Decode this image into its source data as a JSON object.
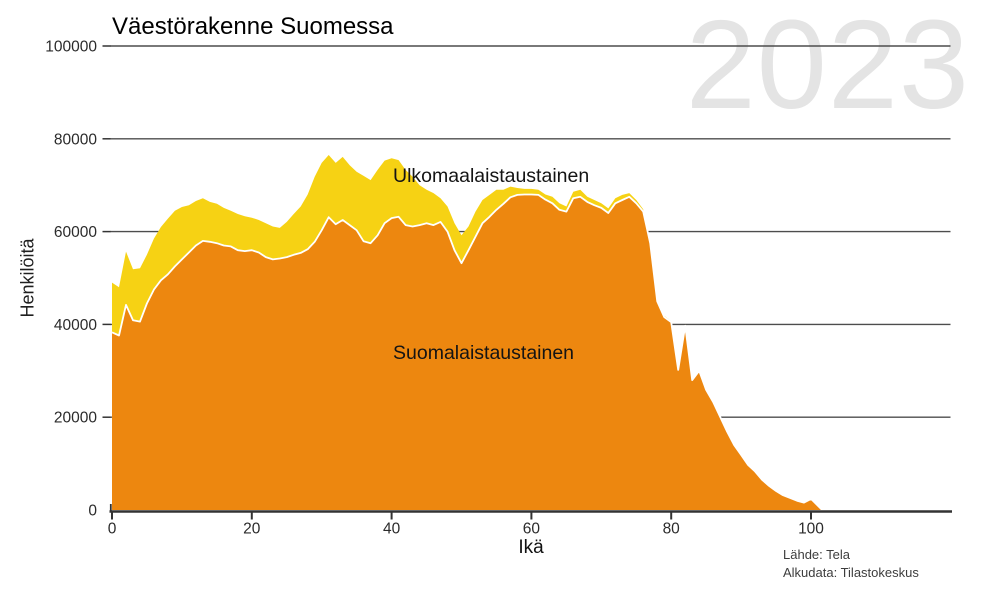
{
  "header": {
    "title": "Väestörakenne Suomessa",
    "watermark": "2023"
  },
  "footer": {
    "source_line1": "Lähde: Tela",
    "source_line2": "Alkudata: Tilastokeskus"
  },
  "chart_data": {
    "type": "area",
    "stacked": true,
    "title": "Väestörakenne Suomessa",
    "xlabel": "Ikä",
    "ylabel": "Henkilöitä",
    "xlim": [
      0,
      120
    ],
    "ylim": [
      0,
      100000
    ],
    "x_ticks": [
      0,
      20,
      40,
      60,
      80,
      100
    ],
    "y_ticks": [
      0,
      20000,
      40000,
      60000,
      80000,
      100000
    ],
    "grid": "horizontal",
    "background_color": "#ffffff",
    "grid_color": "#4d4d4d",
    "axis_color": "#333333",
    "boundary_line_color": "#ffffff",
    "watermark_color": "#e4e4e4",
    "ages": [
      0,
      1,
      2,
      3,
      4,
      5,
      6,
      7,
      8,
      9,
      10,
      11,
      12,
      13,
      14,
      15,
      16,
      17,
      18,
      19,
      20,
      21,
      22,
      23,
      24,
      25,
      26,
      27,
      28,
      29,
      30,
      31,
      32,
      33,
      34,
      35,
      36,
      37,
      38,
      39,
      40,
      41,
      42,
      43,
      44,
      45,
      46,
      47,
      48,
      49,
      50,
      51,
      52,
      53,
      54,
      55,
      56,
      57,
      58,
      59,
      60,
      61,
      62,
      63,
      64,
      65,
      66,
      67,
      68,
      69,
      70,
      71,
      72,
      73,
      74,
      75,
      76,
      77,
      78,
      79,
      80,
      81,
      82,
      83,
      84,
      85,
      86,
      87,
      88,
      89,
      90,
      91,
      92,
      93,
      94,
      95,
      96,
      97,
      98,
      99,
      100
    ],
    "series": [
      {
        "name": "Suomalaistaustainen",
        "color": "#ED870F",
        "values": [
          38300,
          37600,
          44200,
          40900,
          40600,
          44500,
          47500,
          49500,
          50800,
          52500,
          54000,
          55500,
          57000,
          58000,
          57800,
          57500,
          57000,
          56800,
          56000,
          55800,
          56000,
          55500,
          54500,
          54000,
          54200,
          54500,
          55000,
          55400,
          56200,
          57800,
          60300,
          63100,
          61600,
          62500,
          61400,
          60300,
          57900,
          57500,
          59200,
          61800,
          62900,
          63200,
          61400,
          61100,
          61400,
          61800,
          61400,
          62100,
          60000,
          56000,
          53200,
          56000,
          58900,
          61800,
          63200,
          64700,
          66000,
          67400,
          67900,
          68000,
          68000,
          67900,
          66900,
          66100,
          64700,
          64300,
          67200,
          67500,
          66400,
          65700,
          65100,
          64000,
          66100,
          66800,
          67500,
          66100,
          64300,
          57500,
          45000,
          41600,
          40500,
          30200,
          39700,
          28000,
          30000,
          25900,
          23300,
          20100,
          16900,
          14000,
          11900,
          9700,
          8300,
          6500,
          5200,
          4100,
          3200,
          2600,
          2000,
          1600,
          2400
        ]
      },
      {
        "name": "Ulkomaalaistaustainen",
        "color": "#F6D214",
        "values": [
          10700,
          10400,
          11500,
          11000,
          11500,
          10500,
          11000,
          11500,
          12000,
          12000,
          11300,
          10200,
          9600,
          9200,
          8600,
          8500,
          8100,
          7700,
          7800,
          7500,
          7000,
          7000,
          7300,
          7100,
          6600,
          7600,
          8800,
          10000,
          11800,
          14000,
          14500,
          13400,
          13200,
          13600,
          12900,
          12600,
          14100,
          13600,
          14100,
          13500,
          12900,
          12200,
          11900,
          10700,
          8600,
          7200,
          6900,
          5100,
          5400,
          5800,
          6000,
          5100,
          5400,
          5000,
          4700,
          4300,
          3000,
          2300,
          1500,
          1200,
          1200,
          1100,
          1100,
          1400,
          1400,
          1100,
          1400,
          1500,
          1100,
          1100,
          1000,
          1000,
          1100,
          1100,
          800,
          700,
          500,
          400,
          300,
          300,
          200,
          200,
          300,
          200,
          200,
          200,
          200,
          200,
          100,
          100,
          100,
          100,
          100,
          100,
          100,
          100,
          100,
          100,
          100,
          100,
          100
        ]
      }
    ]
  }
}
